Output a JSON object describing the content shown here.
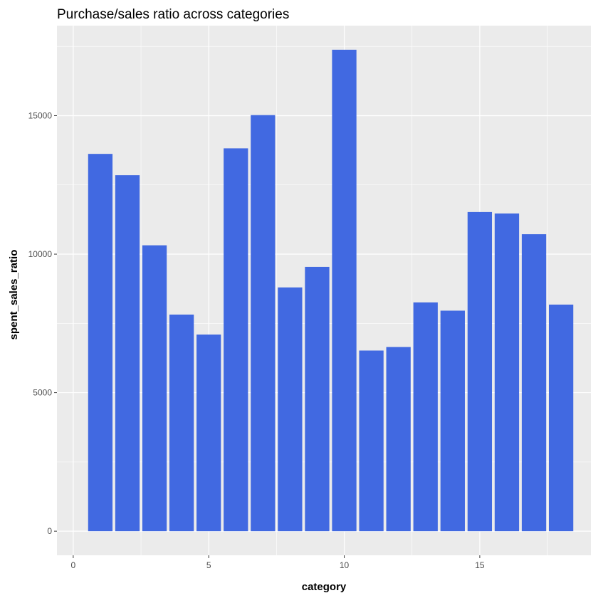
{
  "chart_data": {
    "type": "bar",
    "title": "Purchase/sales ratio across categories",
    "xlabel": "category",
    "ylabel": "spent_sales_ratio",
    "x": [
      1,
      2,
      3,
      4,
      5,
      6,
      7,
      8,
      9,
      10,
      11,
      12,
      13,
      14,
      15,
      16,
      17,
      18
    ],
    "values": [
      13620,
      12850,
      10320,
      7820,
      7100,
      13820,
      15020,
      8800,
      9540,
      17380,
      6520,
      6650,
      8260,
      7960,
      11520,
      11470,
      10720,
      8180
    ],
    "xlim": [
      -0.6,
      19.1
    ],
    "ylim": [
      -870,
      18250
    ],
    "x_ticks": [
      0,
      5,
      10,
      15
    ],
    "x_tick_labels": [
      "0",
      "5",
      "10",
      "15"
    ],
    "y_ticks": [
      0,
      5000,
      10000,
      15000
    ],
    "y_tick_labels": [
      "0",
      "5000",
      "10000",
      "15000"
    ],
    "grid": true,
    "bar_color": "#4169E1",
    "panel_color": "#EBEBEB",
    "grid_color": "#FFFFFF",
    "tick_color": "#333333"
  }
}
